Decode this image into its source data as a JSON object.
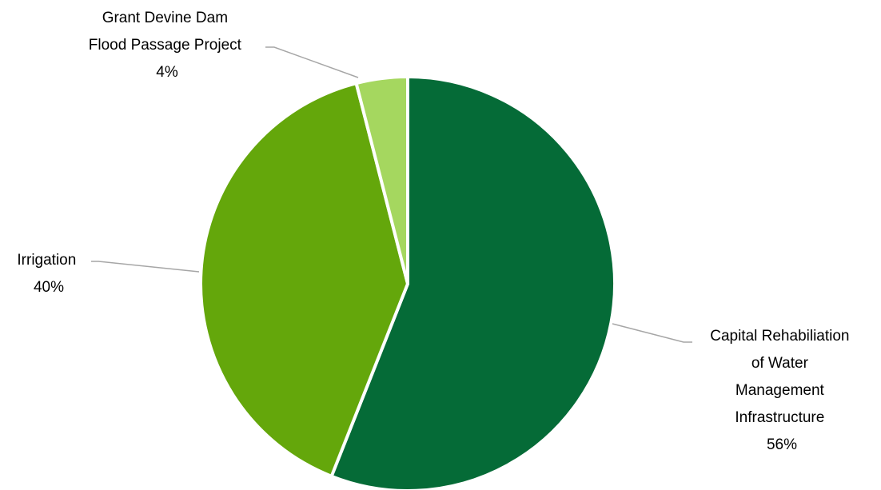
{
  "chart_data": {
    "type": "pie",
    "title": "",
    "slices": [
      {
        "name": "Capital Rehabiliation of Water Management Infrastructure",
        "label_lines": [
          "Capital Rehabiliation",
          "of Water",
          "Management",
          "Infrastructure"
        ],
        "value": 56,
        "percent_label": "56%",
        "color": "#056b37"
      },
      {
        "name": "Irrigation",
        "label_lines": [
          "Irrigation"
        ],
        "value": 40,
        "percent_label": "40%",
        "color": "#64a70b"
      },
      {
        "name": "Grant Devine Dam Flood Passage Project",
        "label_lines": [
          "Grant Devine Dam",
          "Flood Passage Project"
        ],
        "value": 4,
        "percent_label": "4%",
        "color": "#a5d75f"
      }
    ],
    "legend": "none",
    "data_labels": "outside with leader lines"
  }
}
